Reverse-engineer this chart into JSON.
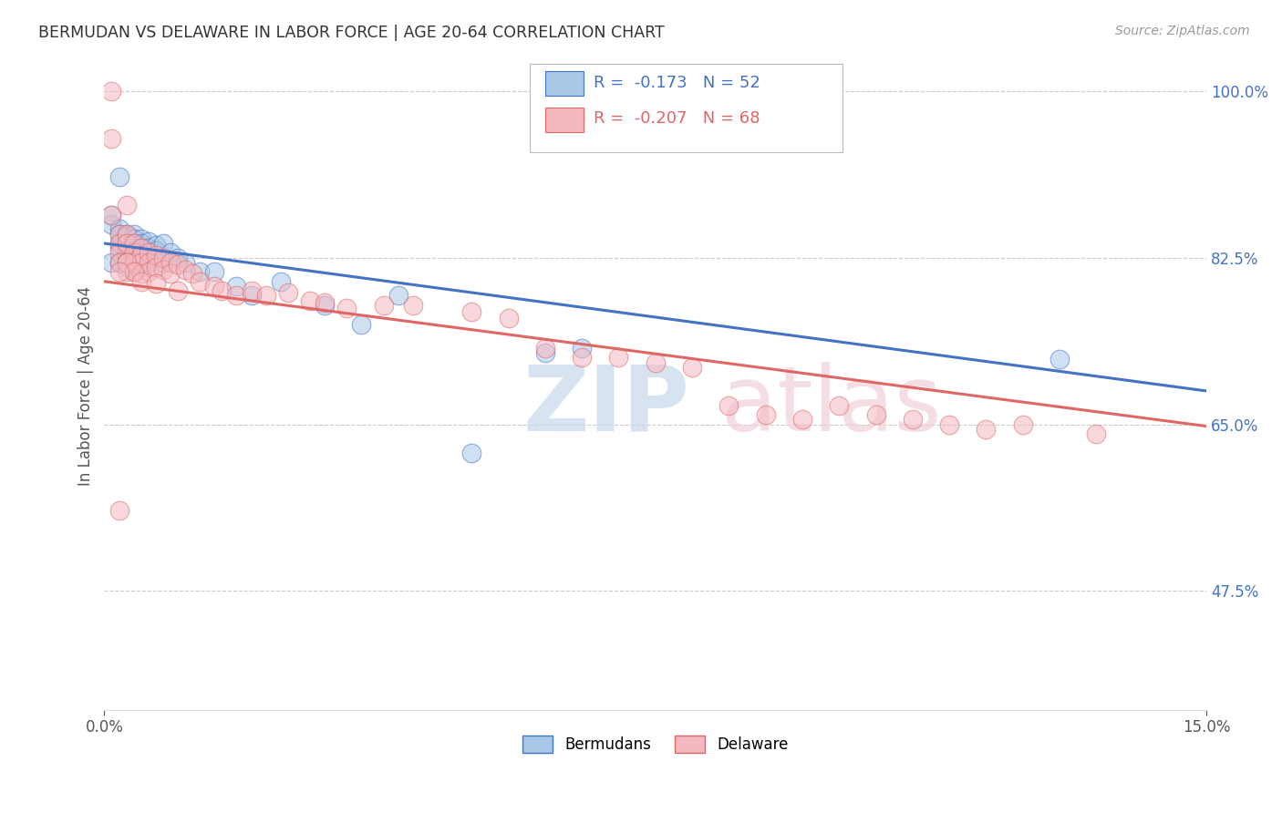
{
  "title": "BERMUDAN VS DELAWARE IN LABOR FORCE | AGE 20-64 CORRELATION CHART",
  "source": "Source: ZipAtlas.com",
  "ylabel": "In Labor Force | Age 20-64",
  "xlim": [
    0.0,
    0.15
  ],
  "ylim": [
    0.35,
    1.03
  ],
  "yticks": [
    0.475,
    0.65,
    0.825,
    1.0
  ],
  "ytick_labels": [
    "47.5%",
    "65.0%",
    "82.5%",
    "100.0%"
  ],
  "xtick_labels": [
    "0.0%",
    "15.0%"
  ],
  "legend_r_bermudans": "-0.173",
  "legend_n_bermudans": "52",
  "legend_r_delaware": "-0.207",
  "legend_n_delaware": "68",
  "blue_color": "#a8c8e8",
  "pink_color": "#f4b8c0",
  "line_blue": "#4472c4",
  "line_pink": "#e06666",
  "blue_line_y0": 0.84,
  "blue_line_y1": 0.685,
  "pink_line_y0": 0.8,
  "pink_line_y1": 0.648,
  "bermudans_x": [
    0.001,
    0.001,
    0.001,
    0.002,
    0.002,
    0.002,
    0.002,
    0.002,
    0.003,
    0.003,
    0.003,
    0.003,
    0.003,
    0.003,
    0.003,
    0.003,
    0.004,
    0.004,
    0.004,
    0.004,
    0.004,
    0.004,
    0.004,
    0.005,
    0.005,
    0.005,
    0.005,
    0.005,
    0.005,
    0.006,
    0.006,
    0.006,
    0.007,
    0.007,
    0.008,
    0.008,
    0.009,
    0.01,
    0.011,
    0.013,
    0.015,
    0.018,
    0.02,
    0.024,
    0.03,
    0.035,
    0.04,
    0.05,
    0.06,
    0.065,
    0.13,
    0.002
  ],
  "bermudans_y": [
    0.86,
    0.87,
    0.82,
    0.855,
    0.85,
    0.84,
    0.835,
    0.82,
    0.85,
    0.848,
    0.84,
    0.838,
    0.832,
    0.825,
    0.822,
    0.815,
    0.85,
    0.845,
    0.84,
    0.838,
    0.832,
    0.825,
    0.818,
    0.845,
    0.84,
    0.835,
    0.83,
    0.822,
    0.815,
    0.842,
    0.835,
    0.825,
    0.838,
    0.832,
    0.84,
    0.82,
    0.83,
    0.825,
    0.82,
    0.81,
    0.81,
    0.795,
    0.785,
    0.8,
    0.775,
    0.755,
    0.785,
    0.62,
    0.725,
    0.73,
    0.718,
    0.91
  ],
  "delaware_x": [
    0.001,
    0.001,
    0.001,
    0.002,
    0.002,
    0.002,
    0.002,
    0.003,
    0.003,
    0.003,
    0.003,
    0.003,
    0.004,
    0.004,
    0.004,
    0.004,
    0.005,
    0.005,
    0.005,
    0.005,
    0.006,
    0.006,
    0.006,
    0.007,
    0.007,
    0.008,
    0.008,
    0.009,
    0.009,
    0.01,
    0.011,
    0.012,
    0.013,
    0.015,
    0.016,
    0.018,
    0.02,
    0.022,
    0.025,
    0.028,
    0.03,
    0.033,
    0.038,
    0.042,
    0.05,
    0.055,
    0.06,
    0.065,
    0.07,
    0.075,
    0.08,
    0.085,
    0.09,
    0.095,
    0.1,
    0.105,
    0.11,
    0.115,
    0.12,
    0.125,
    0.135,
    0.003,
    0.004,
    0.005,
    0.002,
    0.007,
    0.01,
    0.002
  ],
  "delaware_y": [
    1.0,
    0.95,
    0.87,
    0.85,
    0.84,
    0.83,
    0.82,
    0.88,
    0.85,
    0.84,
    0.82,
    0.81,
    0.84,
    0.83,
    0.82,
    0.81,
    0.835,
    0.828,
    0.82,
    0.808,
    0.83,
    0.82,
    0.81,
    0.828,
    0.815,
    0.825,
    0.812,
    0.82,
    0.808,
    0.818,
    0.812,
    0.808,
    0.8,
    0.795,
    0.79,
    0.785,
    0.79,
    0.785,
    0.788,
    0.78,
    0.778,
    0.772,
    0.775,
    0.775,
    0.768,
    0.762,
    0.73,
    0.72,
    0.72,
    0.715,
    0.71,
    0.67,
    0.66,
    0.655,
    0.67,
    0.66,
    0.655,
    0.65,
    0.645,
    0.65,
    0.64,
    0.82,
    0.81,
    0.8,
    0.81,
    0.798,
    0.79,
    0.56
  ],
  "watermark_zip_color": "#c8d8ec",
  "watermark_atlas_color": "#f0d0d8"
}
